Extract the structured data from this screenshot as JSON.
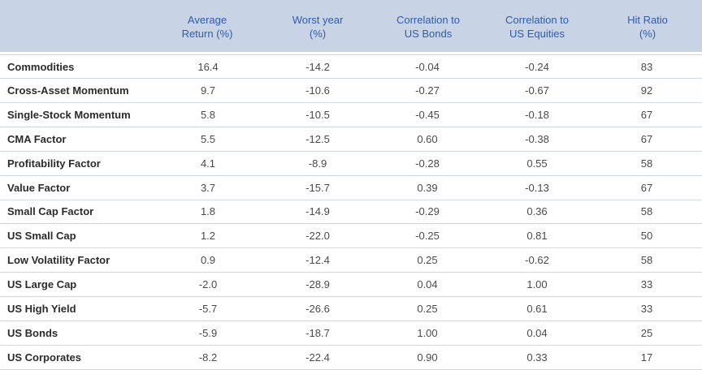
{
  "columns": [
    {
      "line1": "Average",
      "line2": "Return (%)"
    },
    {
      "line1": "Worst year",
      "line2": "(%)"
    },
    {
      "line1": "Correlation to",
      "line2": "US Bonds"
    },
    {
      "line1": "Correlation to",
      "line2": "US Equities"
    },
    {
      "line1": "Hit Ratio",
      "line2": "(%)"
    }
  ],
  "rows": [
    {
      "name": "Commodities",
      "avg_return": "16.4",
      "worst_year": "-14.2",
      "corr_bonds": "-0.04",
      "corr_equities": "-0.24",
      "hit_ratio": "83"
    },
    {
      "name": "Cross-Asset Momentum",
      "avg_return": "9.7",
      "worst_year": "-10.6",
      "corr_bonds": "-0.27",
      "corr_equities": "-0.67",
      "hit_ratio": "92"
    },
    {
      "name": "Single-Stock Momentum",
      "avg_return": "5.8",
      "worst_year": "-10.5",
      "corr_bonds": "-0.45",
      "corr_equities": "-0.18",
      "hit_ratio": "67"
    },
    {
      "name": "CMA Factor",
      "avg_return": "5.5",
      "worst_year": "-12.5",
      "corr_bonds": "0.60",
      "corr_equities": "-0.38",
      "hit_ratio": "67"
    },
    {
      "name": "Profitability Factor",
      "avg_return": "4.1",
      "worst_year": "-8.9",
      "corr_bonds": "-0.28",
      "corr_equities": "0.55",
      "hit_ratio": "58"
    },
    {
      "name": "Value Factor",
      "avg_return": "3.7",
      "worst_year": "-15.7",
      "corr_bonds": "0.39",
      "corr_equities": "-0.13",
      "hit_ratio": "67"
    },
    {
      "name": "Small Cap Factor",
      "avg_return": "1.8",
      "worst_year": "-14.9",
      "corr_bonds": "-0.29",
      "corr_equities": "0.36",
      "hit_ratio": "58"
    },
    {
      "name": "US Small Cap",
      "avg_return": "1.2",
      "worst_year": "-22.0",
      "corr_bonds": "-0.25",
      "corr_equities": "0.81",
      "hit_ratio": "50"
    },
    {
      "name": "Low Volatility Factor",
      "avg_return": "0.9",
      "worst_year": "-12.4",
      "corr_bonds": "0.25",
      "corr_equities": "-0.62",
      "hit_ratio": "58"
    },
    {
      "name": "US Large Cap",
      "avg_return": "-2.0",
      "worst_year": "-28.9",
      "corr_bonds": "0.04",
      "corr_equities": "1.00",
      "hit_ratio": "33"
    },
    {
      "name": "US High Yield",
      "avg_return": "-5.7",
      "worst_year": "-26.6",
      "corr_bonds": "0.25",
      "corr_equities": "0.61",
      "hit_ratio": "33"
    },
    {
      "name": "US Bonds",
      "avg_return": "-5.9",
      "worst_year": "-18.7",
      "corr_bonds": "1.00",
      "corr_equities": "0.04",
      "hit_ratio": "25"
    },
    {
      "name": "US Corporates",
      "avg_return": "-8.2",
      "worst_year": "-22.4",
      "corr_bonds": "0.90",
      "corr_equities": "0.33",
      "hit_ratio": "17"
    }
  ],
  "colors": {
    "header_bg": "#c9d3e6",
    "header_text": "#2f5ca8",
    "divider": "#cfd6e3"
  }
}
